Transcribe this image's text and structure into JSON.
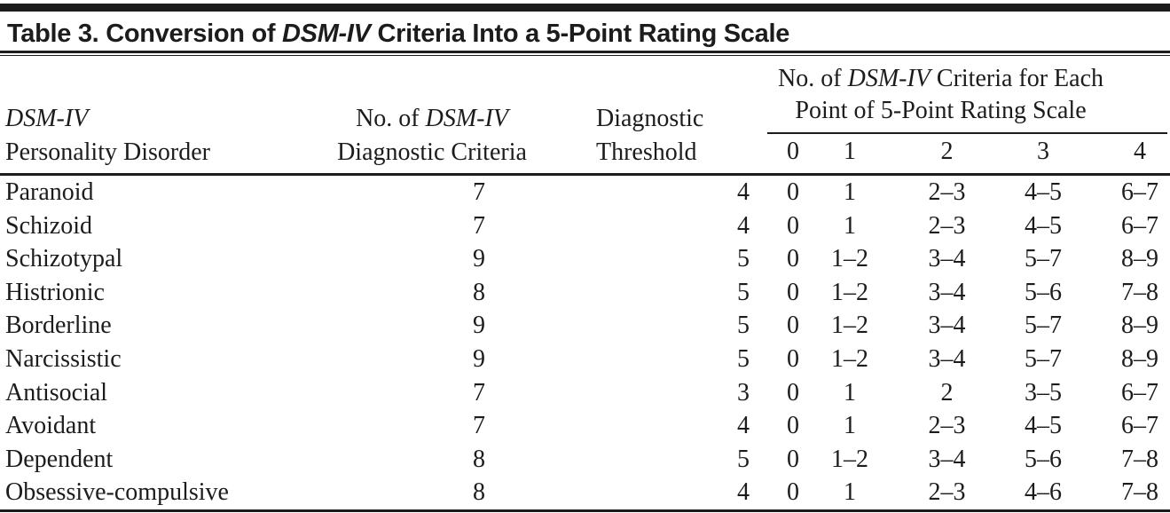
{
  "title": "Table 3. Conversion of DSM-IV Criteria Into a 5-Point Rating Scale",
  "colors": {
    "ink": "#1c1c1c",
    "background": "#ffffff"
  },
  "table": {
    "col_headers": {
      "disorder_line1": "DSM-IV",
      "disorder_line2": "Personality Disorder",
      "criteria_line1": "No. of DSM-IV",
      "criteria_line2": "Diagnostic Criteria",
      "threshold_line1": "Diagnostic",
      "threshold_line2": "Threshold",
      "rating_group_line1": "No. of DSM-IV Criteria for Each",
      "rating_group_line2": "Point of 5-Point Rating Scale",
      "rating_points": [
        "0",
        "1",
        "2",
        "3",
        "4"
      ]
    },
    "rows": [
      {
        "disorder": "Paranoid",
        "criteria": "7",
        "threshold": "4",
        "ratings": [
          "0",
          "1",
          "2–3",
          "4–5",
          "6–7"
        ]
      },
      {
        "disorder": "Schizoid",
        "criteria": "7",
        "threshold": "4",
        "ratings": [
          "0",
          "1",
          "2–3",
          "4–5",
          "6–7"
        ]
      },
      {
        "disorder": "Schizotypal",
        "criteria": "9",
        "threshold": "5",
        "ratings": [
          "0",
          "1–2",
          "3–4",
          "5–7",
          "8–9"
        ]
      },
      {
        "disorder": "Histrionic",
        "criteria": "8",
        "threshold": "5",
        "ratings": [
          "0",
          "1–2",
          "3–4",
          "5–6",
          "7–8"
        ]
      },
      {
        "disorder": "Borderline",
        "criteria": "9",
        "threshold": "5",
        "ratings": [
          "0",
          "1–2",
          "3–4",
          "5–7",
          "8–9"
        ]
      },
      {
        "disorder": "Narcissistic",
        "criteria": "9",
        "threshold": "5",
        "ratings": [
          "0",
          "1–2",
          "3–4",
          "5–7",
          "8–9"
        ]
      },
      {
        "disorder": "Antisocial",
        "criteria": "7",
        "threshold": "3",
        "ratings": [
          "0",
          "1",
          "2",
          "3–5",
          "6–7"
        ]
      },
      {
        "disorder": "Avoidant",
        "criteria": "7",
        "threshold": "4",
        "ratings": [
          "0",
          "1",
          "2–3",
          "4–5",
          "6–7"
        ]
      },
      {
        "disorder": "Dependent",
        "criteria": "8",
        "threshold": "5",
        "ratings": [
          "0",
          "1–2",
          "3–4",
          "5–6",
          "7–8"
        ]
      },
      {
        "disorder": "Obsessive-compulsive",
        "criteria": "8",
        "threshold": "4",
        "ratings": [
          "0",
          "1",
          "2–3",
          "4–6",
          "7–8"
        ]
      }
    ]
  }
}
